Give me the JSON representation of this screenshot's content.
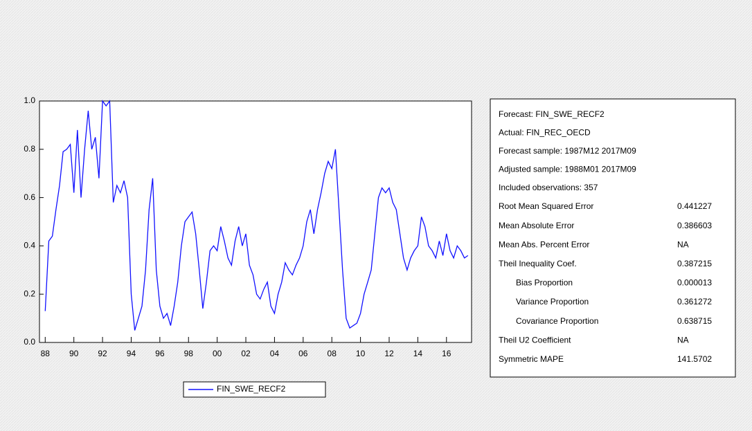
{
  "chart_data": {
    "type": "line",
    "series": [
      {
        "name": "FIN_SWE_RECF2",
        "color": "#1010ff",
        "values": [
          0.13,
          0.42,
          0.44,
          0.55,
          0.65,
          0.79,
          0.8,
          0.82,
          0.62,
          0.88,
          0.6,
          0.8,
          0.96,
          0.8,
          0.85,
          0.68,
          1.0,
          0.98,
          1.0,
          0.58,
          0.65,
          0.62,
          0.67,
          0.6,
          0.2,
          0.05,
          0.1,
          0.15,
          0.3,
          0.55,
          0.68,
          0.3,
          0.15,
          0.1,
          0.12,
          0.07,
          0.15,
          0.25,
          0.4,
          0.5,
          0.52,
          0.54,
          0.45,
          0.3,
          0.14,
          0.25,
          0.38,
          0.4,
          0.38,
          0.48,
          0.42,
          0.35,
          0.32,
          0.42,
          0.48,
          0.4,
          0.45,
          0.32,
          0.28,
          0.2,
          0.18,
          0.22,
          0.25,
          0.15,
          0.12,
          0.2,
          0.25,
          0.33,
          0.3,
          0.28,
          0.32,
          0.35,
          0.4,
          0.5,
          0.55,
          0.45,
          0.55,
          0.62,
          0.7,
          0.75,
          0.72,
          0.8,
          0.55,
          0.3,
          0.1,
          0.06,
          0.07,
          0.08,
          0.12,
          0.2,
          0.25,
          0.3,
          0.45,
          0.6,
          0.64,
          0.62,
          0.64,
          0.58,
          0.55,
          0.45,
          0.35,
          0.3,
          0.35,
          0.38,
          0.4,
          0.52,
          0.48,
          0.4,
          0.38,
          0.35,
          0.42,
          0.36,
          0.45,
          0.38,
          0.35,
          0.4,
          0.38,
          0.35,
          0.36
        ]
      }
    ],
    "x": [
      1988,
      1988.25,
      1988.5,
      1988.75,
      1989,
      1989.25,
      1989.5,
      1989.75,
      1990,
      1990.25,
      1990.5,
      1990.75,
      1991,
      1991.25,
      1991.5,
      1991.75,
      1992,
      1992.25,
      1992.5,
      1992.75,
      1993,
      1993.25,
      1993.5,
      1993.75,
      1994,
      1994.25,
      1994.5,
      1994.75,
      1995,
      1995.25,
      1995.5,
      1995.75,
      1996,
      1996.25,
      1996.5,
      1996.75,
      1997,
      1997.25,
      1997.5,
      1997.75,
      1998,
      1998.25,
      1998.5,
      1998.75,
      1999,
      1999.25,
      1999.5,
      1999.75,
      2000,
      2000.25,
      2000.5,
      2000.75,
      2001,
      2001.25,
      2001.5,
      2001.75,
      2002,
      2002.25,
      2002.5,
      2002.75,
      2003,
      2003.25,
      2003.5,
      2003.75,
      2004,
      2004.25,
      2004.5,
      2004.75,
      2005,
      2005.25,
      2005.5,
      2005.75,
      2006,
      2006.25,
      2006.5,
      2006.75,
      2007,
      2007.25,
      2007.5,
      2007.75,
      2008,
      2008.25,
      2008.5,
      2008.75,
      2009,
      2009.25,
      2009.5,
      2009.75,
      2010,
      2010.25,
      2010.5,
      2010.75,
      2011,
      2011.25,
      2011.5,
      2011.75,
      2012,
      2012.25,
      2012.5,
      2012.75,
      2013,
      2013.25,
      2013.5,
      2013.75,
      2014,
      2014.25,
      2014.5,
      2014.75,
      2015,
      2015.25,
      2015.5,
      2015.75,
      2016,
      2016.25,
      2016.5,
      2016.75,
      2017,
      2017.25,
      2017.5
    ],
    "xlim": [
      1987.6,
      2017.75
    ],
    "xticks": [
      {
        "value": 1988,
        "label": "88"
      },
      {
        "value": 1990,
        "label": "90"
      },
      {
        "value": 1992,
        "label": "92"
      },
      {
        "value": 1994,
        "label": "94"
      },
      {
        "value": 1996,
        "label": "96"
      },
      {
        "value": 1998,
        "label": "98"
      },
      {
        "value": 2000,
        "label": "00"
      },
      {
        "value": 2002,
        "label": "02"
      },
      {
        "value": 2004,
        "label": "04"
      },
      {
        "value": 2006,
        "label": "06"
      },
      {
        "value": 2008,
        "label": "08"
      },
      {
        "value": 2010,
        "label": "10"
      },
      {
        "value": 2012,
        "label": "12"
      },
      {
        "value": 2014,
        "label": "14"
      },
      {
        "value": 2016,
        "label": "16"
      }
    ],
    "ylim": [
      0,
      1
    ],
    "yticks": [
      {
        "value": 0,
        "label": "0.0"
      },
      0.2,
      0.4,
      0.6,
      0.8,
      {
        "value": 1,
        "label": "1.0"
      }
    ],
    "legend": "bottom"
  },
  "stats": {
    "header": [
      "Forecast: FIN_SWE_RECF2",
      "Actual: FIN_REC_OECD",
      "Forecast sample: 1987M12 2017M09",
      "Adjusted sample: 1988M01 2017M09",
      "Included observations: 357"
    ],
    "rows": [
      [
        "Root Mean Squared Error",
        "0.441227"
      ],
      [
        "Mean Absolute Error",
        "0.386603"
      ],
      [
        "Mean Abs. Percent Error",
        "NA"
      ],
      [
        "Theil Inequality Coef.",
        "0.387215"
      ],
      [
        "Bias Proportion",
        "0.000013"
      ],
      [
        "Variance Proportion",
        "0.361272"
      ],
      [
        "Covariance Proportion",
        "0.638715"
      ],
      [
        "Theil U2 Coefficient",
        "NA"
      ],
      [
        "Symmetric MAPE",
        "141.5702"
      ]
    ]
  }
}
